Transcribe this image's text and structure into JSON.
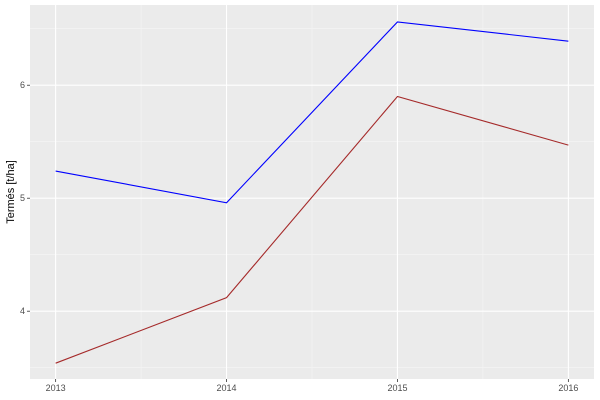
{
  "chart_data": {
    "type": "line",
    "title": "",
    "xlabel": "",
    "ylabel": "Termés [t/ha]",
    "x": [
      2013,
      2014,
      2015,
      2016
    ],
    "x_tick_labels": [
      "2013",
      "2014",
      "2015",
      "2016"
    ],
    "y_ticks": [
      4,
      5,
      6
    ],
    "y_tick_labels": [
      "4",
      "5",
      "6"
    ],
    "xlim": [
      2012.85,
      2016.15
    ],
    "ylim": [
      3.4,
      6.71
    ],
    "grid": true,
    "legend": "none",
    "series": [
      {
        "color": "#0000ff",
        "values": [
          5.24,
          4.96,
          6.56,
          6.39
        ]
      },
      {
        "color": "#a52a2a",
        "values": [
          3.54,
          4.12,
          5.9,
          5.47
        ]
      }
    ]
  }
}
